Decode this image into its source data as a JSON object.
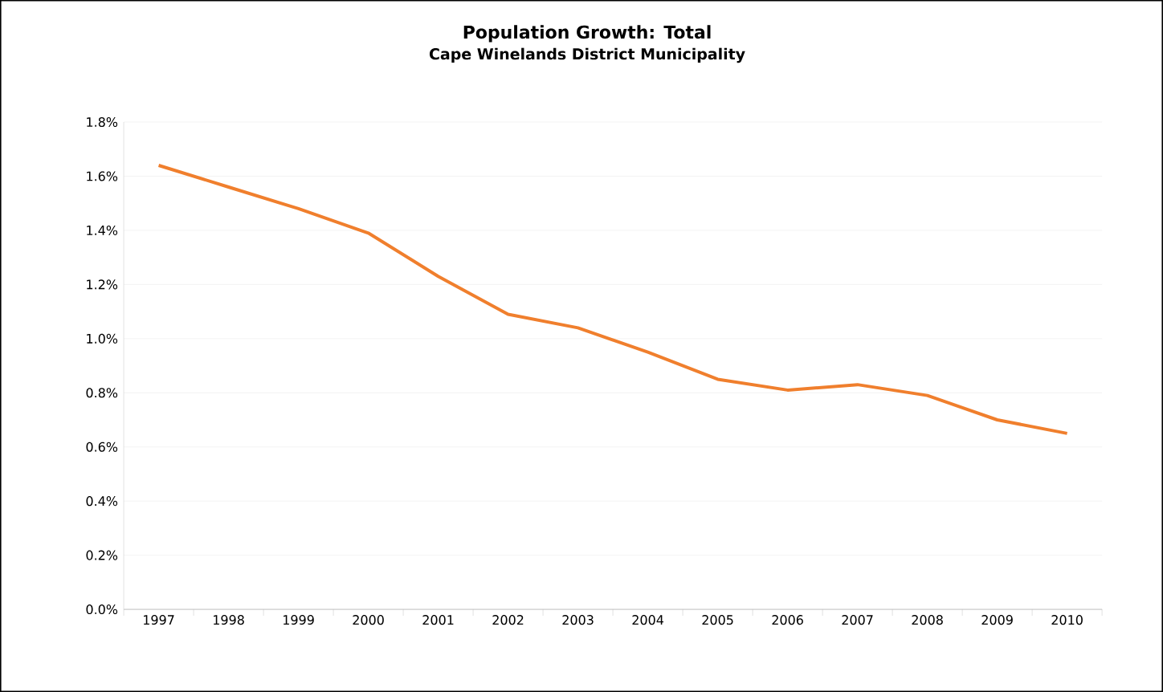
{
  "chart_data": {
    "type": "line",
    "title": "Population Growth: Total",
    "subtitle": "Cape Winelands District Municipality",
    "categories": [
      "1997",
      "1998",
      "1999",
      "2000",
      "2001",
      "2002",
      "2003",
      "2004",
      "2005",
      "2006",
      "2007",
      "2008",
      "2009",
      "2010"
    ],
    "series": [
      {
        "color": "#f07f2d",
        "values": [
          1.64,
          1.56,
          1.48,
          1.39,
          1.23,
          1.09,
          1.04,
          0.95,
          0.85,
          0.81,
          0.83,
          0.79,
          0.7,
          0.65
        ]
      }
    ],
    "ylim": [
      0,
      1.8
    ],
    "yticks": [
      {
        "value": 0,
        "label": "0.0%"
      },
      {
        "value": 0.2,
        "label": "0.2%"
      },
      {
        "value": 0.4,
        "label": "0.4%"
      },
      {
        "value": 0.6,
        "label": "0.6%"
      },
      {
        "value": 0.8,
        "label": "0.8%"
      },
      {
        "value": 1.0,
        "label": "1.0%"
      },
      {
        "value": 1.2,
        "label": "1.2%"
      },
      {
        "value": 1.4,
        "label": "1.4%"
      },
      {
        "value": 1.6,
        "label": "1.6%"
      },
      {
        "value": 1.8,
        "label": "1.8%"
      }
    ],
    "grid": "y",
    "marker": "none",
    "line_style": "solid"
  }
}
